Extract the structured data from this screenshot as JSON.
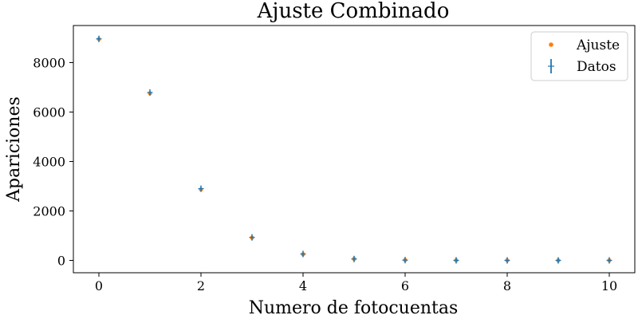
{
  "chart_data": {
    "type": "scatter",
    "title": "Ajuste Combinado",
    "xlabel": "Numero de fotocuentas",
    "ylabel": "Apariciones",
    "xlim": [
      -0.5,
      10.5
    ],
    "ylim": [
      -500,
      9500
    ],
    "xticks": [
      0,
      2,
      4,
      6,
      8,
      10
    ],
    "yticks": [
      0,
      2000,
      4000,
      6000,
      8000
    ],
    "grid": false,
    "legend_position": "top-right",
    "series": [
      {
        "name": "Ajuste",
        "marker": "dot",
        "color": "#ff7f0e",
        "x": [
          0,
          1,
          2,
          3,
          4,
          5,
          6,
          7,
          8,
          9,
          10
        ],
        "y": [
          8950,
          6760,
          2870,
          920,
          250,
          60,
          15,
          3,
          1,
          0,
          0
        ]
      },
      {
        "name": "Datos",
        "marker": "errorbar",
        "color": "#1f77b4",
        "x": [
          0,
          1,
          2,
          3,
          4,
          5,
          6,
          7,
          8,
          9,
          10
        ],
        "y": [
          8960,
          6790,
          2900,
          930,
          260,
          55,
          10,
          2,
          0,
          0,
          0
        ],
        "yerr": [
          95,
          82,
          54,
          30,
          16,
          8,
          4,
          2,
          1,
          1,
          1
        ]
      }
    ]
  }
}
